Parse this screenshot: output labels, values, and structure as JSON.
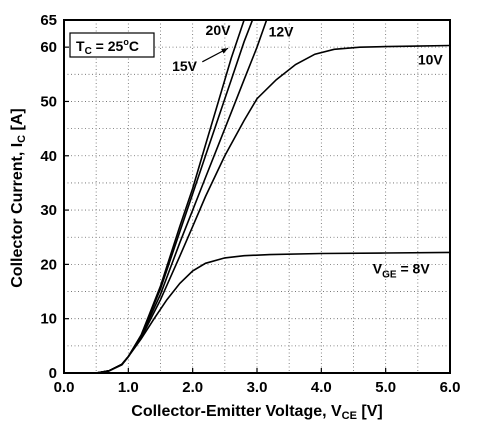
{
  "chart_data": {
    "type": "line",
    "title": "",
    "xlabel": "Collector-Emitter Voltage, V",
    "xlabel_sub": "CE",
    "xlabel_unit": " [V]",
    "ylabel": "Collector Current, I",
    "ylabel_sub": "C",
    "ylabel_unit": " [A]",
    "xlim": [
      0,
      6
    ],
    "ylim": [
      0,
      65
    ],
    "grid": true,
    "x_ticks": [
      0,
      1,
      2,
      3,
      4,
      5,
      6
    ],
    "x_tick_labels": [
      "0.0",
      "1.0",
      "2.0",
      "3.0",
      "4.0",
      "5.0",
      "6.0"
    ],
    "y_ticks": [
      0,
      10,
      20,
      30,
      40,
      50,
      60,
      65
    ],
    "y_tick_labels": [
      "0",
      "10",
      "20",
      "30",
      "40",
      "50",
      "60",
      "65"
    ],
    "condition_label": {
      "main": "T",
      "sub": "C",
      "rest": " = 25",
      "sup": "o",
      "unit": "C"
    },
    "series": [
      {
        "name": "20V",
        "label": {
          "text": "20V",
          "x": 2.2,
          "y": 62.2
        },
        "points": [
          [
            0,
            0
          ],
          [
            0.5,
            0
          ],
          [
            0.7,
            0.4
          ],
          [
            0.9,
            1.6
          ],
          [
            1.0,
            3
          ],
          [
            1.2,
            7
          ],
          [
            1.5,
            16
          ],
          [
            1.8,
            27
          ],
          [
            2.0,
            34
          ],
          [
            2.2,
            42
          ],
          [
            2.4,
            50
          ],
          [
            2.6,
            58
          ],
          [
            2.8,
            65
          ]
        ]
      },
      {
        "name": "15V",
        "label": {
          "text": "15V",
          "x": 1.68,
          "y": 55.6
        },
        "points": [
          [
            0,
            0
          ],
          [
            0.5,
            0
          ],
          [
            0.7,
            0.4
          ],
          [
            0.9,
            1.6
          ],
          [
            1.0,
            3
          ],
          [
            1.2,
            7
          ],
          [
            1.5,
            15.5
          ],
          [
            1.8,
            26
          ],
          [
            2.0,
            33
          ],
          [
            2.2,
            40
          ],
          [
            2.4,
            47
          ],
          [
            2.6,
            54
          ],
          [
            2.8,
            61
          ],
          [
            2.93,
            65
          ]
        ]
      },
      {
        "name": "12V",
        "label": {
          "text": "12V",
          "x": 3.18,
          "y": 62.0
        },
        "points": [
          [
            0,
            0
          ],
          [
            0.5,
            0
          ],
          [
            0.7,
            0.4
          ],
          [
            0.9,
            1.6
          ],
          [
            1.0,
            3
          ],
          [
            1.2,
            6.8
          ],
          [
            1.5,
            14.5
          ],
          [
            1.8,
            24
          ],
          [
            2.0,
            30
          ],
          [
            2.2,
            36
          ],
          [
            2.4,
            42
          ],
          [
            2.6,
            48
          ],
          [
            2.8,
            54
          ],
          [
            3.0,
            60
          ],
          [
            3.15,
            65
          ]
        ]
      },
      {
        "name": "10V",
        "label": {
          "text": "10V",
          "x": 5.5,
          "y": 56.8
        },
        "points": [
          [
            0,
            0
          ],
          [
            0.5,
            0
          ],
          [
            0.7,
            0.4
          ],
          [
            0.9,
            1.6
          ],
          [
            1.0,
            3
          ],
          [
            1.2,
            6.5
          ],
          [
            1.5,
            13.5
          ],
          [
            1.8,
            21.5
          ],
          [
            2.0,
            27
          ],
          [
            2.2,
            32.5
          ],
          [
            2.5,
            40
          ],
          [
            2.8,
            46.5
          ],
          [
            3.0,
            50.5
          ],
          [
            3.3,
            54
          ],
          [
            3.6,
            56.8
          ],
          [
            3.9,
            58.7
          ],
          [
            4.2,
            59.6
          ],
          [
            4.6,
            60.0
          ],
          [
            5.0,
            60.1
          ],
          [
            5.5,
            60.2
          ],
          [
            6.0,
            60.3
          ]
        ]
      },
      {
        "name": "8V",
        "label": {
          "text": "V",
          "sub": "GE",
          "rest": " = 8V",
          "x": 4.8,
          "y": 18.3
        },
        "points": [
          [
            0,
            0
          ],
          [
            0.5,
            0
          ],
          [
            0.7,
            0.4
          ],
          [
            0.9,
            1.5
          ],
          [
            1.0,
            3
          ],
          [
            1.2,
            6.3
          ],
          [
            1.4,
            10
          ],
          [
            1.6,
            13.5
          ],
          [
            1.8,
            16.5
          ],
          [
            2.0,
            18.8
          ],
          [
            2.2,
            20.2
          ],
          [
            2.5,
            21.2
          ],
          [
            2.8,
            21.6
          ],
          [
            3.2,
            21.8
          ],
          [
            4.0,
            22.0
          ],
          [
            5.0,
            22.1
          ],
          [
            6.0,
            22.2
          ]
        ]
      }
    ],
    "arrow": {
      "from": [
        2.15,
        57.3
      ],
      "to": [
        2.55,
        59.8
      ]
    }
  }
}
